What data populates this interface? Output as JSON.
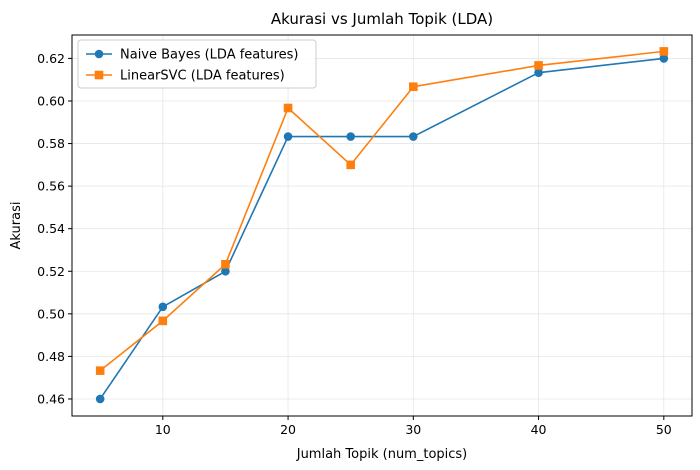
{
  "chart_data": {
    "type": "line",
    "title": "Akurasi vs Jumlah Topik (LDA)",
    "xlabel": "Jumlah Topik (num_topics)",
    "ylabel": "Akurasi",
    "x": [
      5,
      10,
      15,
      20,
      25,
      30,
      40,
      50
    ],
    "xlim": [
      2.75,
      52.25
    ],
    "ylim": [
      0.452,
      0.631
    ],
    "xticks": [
      10,
      20,
      30,
      40,
      50
    ],
    "yticks": [
      0.46,
      0.48,
      0.5,
      0.52,
      0.54,
      0.56,
      0.58,
      0.6,
      0.62
    ],
    "ytick_labels": [
      "0.46",
      "0.48",
      "0.50",
      "0.52",
      "0.54",
      "0.56",
      "0.58",
      "0.60",
      "0.62"
    ],
    "grid": true,
    "legend_position": "top-left",
    "series": [
      {
        "name": "Naive Bayes (LDA features)",
        "values": [
          0.46,
          0.5033,
          0.52,
          0.5833,
          0.5833,
          0.5833,
          0.6133,
          0.62
        ],
        "color": "#1f77b4",
        "marker": "circle"
      },
      {
        "name": "LinearSVC (LDA features)",
        "values": [
          0.4733,
          0.4967,
          0.5233,
          0.5967,
          0.57,
          0.6067,
          0.6167,
          0.6233
        ],
        "color": "#ff7f0e",
        "marker": "square"
      }
    ]
  }
}
